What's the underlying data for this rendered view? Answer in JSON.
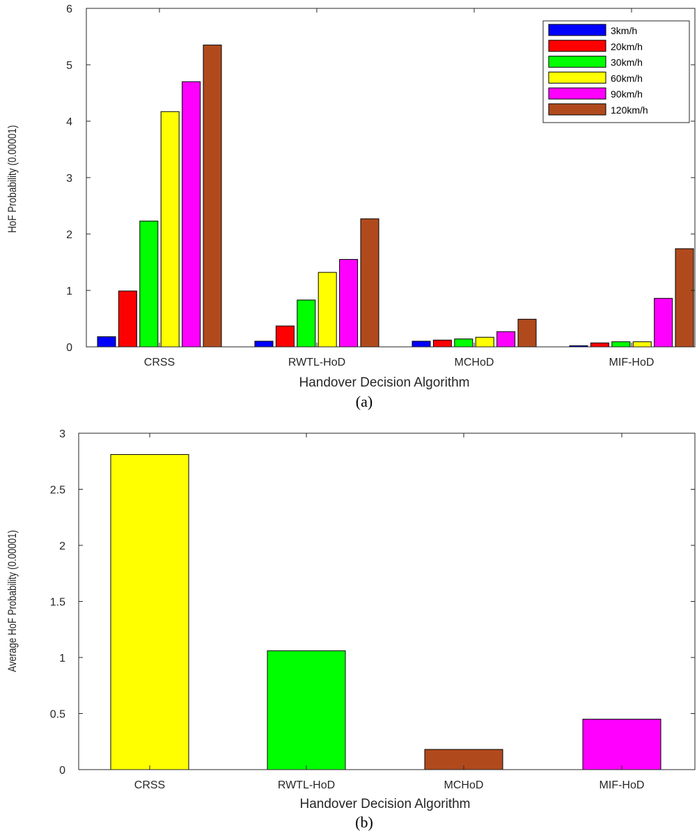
{
  "chart_data": [
    {
      "type": "bar",
      "caption": "(a)",
      "xlabel": "Handover Decision Algorithm",
      "ylabel": "HoF Probability (0.00001)",
      "ylim": [
        0,
        6
      ],
      "yticks": [
        "0",
        "1",
        "2",
        "3",
        "4",
        "5",
        "6"
      ],
      "categories": [
        "CRSS",
        "RWTL-HoD",
        "MCHoD",
        "MIF-HoD"
      ],
      "legend_position": "top-right",
      "series": [
        {
          "name": "3km/h",
          "color": "#0000ff",
          "values": [
            0.18,
            0.1,
            0.1,
            0.02
          ]
        },
        {
          "name": "20km/h",
          "color": "#ff0000",
          "values": [
            0.99,
            0.37,
            0.12,
            0.07
          ]
        },
        {
          "name": "30km/h",
          "color": "#00ff00",
          "values": [
            2.23,
            0.83,
            0.14,
            0.09
          ]
        },
        {
          "name": "60km/h",
          "color": "#ffff00",
          "values": [
            4.17,
            1.32,
            0.17,
            0.09
          ]
        },
        {
          "name": "90km/h",
          "color": "#ff00ff",
          "values": [
            4.7,
            1.55,
            0.27,
            0.86
          ]
        },
        {
          "name": "120km/h",
          "color": "#b04a1d",
          "values": [
            5.35,
            2.27,
            0.49,
            1.74
          ]
        }
      ]
    },
    {
      "type": "bar",
      "caption": "(b)",
      "xlabel": "Handover Decision Algorithm",
      "ylabel": "Average HoF Probability (0.00001)",
      "ylim": [
        0,
        3
      ],
      "yticks": [
        "0",
        "0.5",
        "1",
        "1.5",
        "2",
        "2.5",
        "3"
      ],
      "categories": [
        "CRSS",
        "RWTL-HoD",
        "MCHoD",
        "MIF-HoD"
      ],
      "values": [
        2.81,
        1.06,
        0.18,
        0.45
      ],
      "colors": [
        "#ffff00",
        "#00ff00",
        "#b04a1d",
        "#ff00ff"
      ]
    }
  ]
}
